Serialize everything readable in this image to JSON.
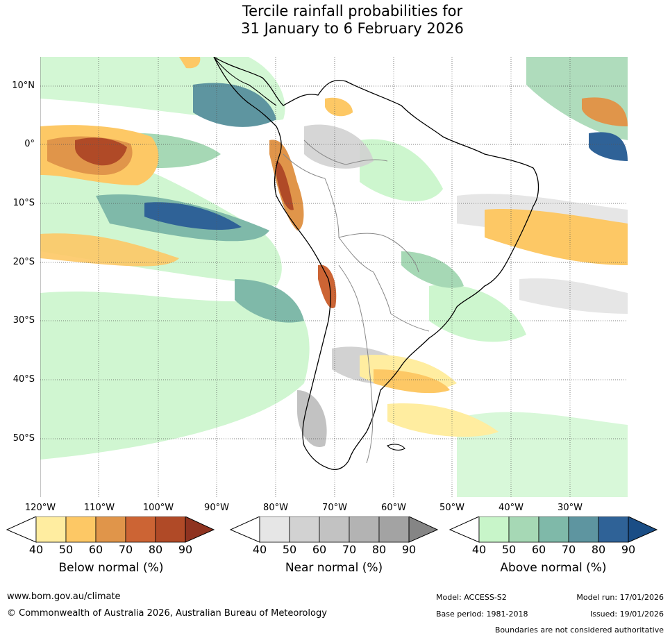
{
  "title_line1": "Tercile rainfall probabilities for",
  "title_line2": "31 January to 6 February 2026",
  "map": {
    "lat_labels": [
      "10°N",
      "0°",
      "10°S",
      "20°S",
      "30°S",
      "40°S",
      "50°S"
    ],
    "lon_labels": [
      "120°W",
      "110°W",
      "100°W",
      "90°W",
      "80°W",
      "70°W",
      "60°W",
      "50°W",
      "40°W",
      "30°W"
    ]
  },
  "legends": {
    "below": {
      "title": "Below normal (%)",
      "ticks": [
        "40",
        "50",
        "60",
        "70",
        "80",
        "90"
      ],
      "colors": [
        "#ffeda0",
        "#fdc865",
        "#e0954a",
        "#cc6434",
        "#b04a27",
        "#8f3320"
      ]
    },
    "near": {
      "title": "Near normal (%)",
      "ticks": [
        "40",
        "50",
        "60",
        "70",
        "80",
        "90"
      ],
      "colors": [
        "#e6e6e6",
        "#d2d2d2",
        "#c2c2c2",
        "#b3b3b3",
        "#a3a3a3",
        "#858585"
      ]
    },
    "above": {
      "title": "Above normal (%)",
      "ticks": [
        "40",
        "50",
        "60",
        "70",
        "80",
        "90"
      ],
      "colors": [
        "#c8f5c9",
        "#a6d8b5",
        "#7fb9a9",
        "#5e95a0",
        "#2f6297",
        "#1a4d85"
      ]
    }
  },
  "footer": {
    "url": "www.bom.gov.au/climate",
    "copyright": "© Commonwealth of Australia 2026, Australian Bureau of Meteorology",
    "model": "Model: ACCESS-S2",
    "model_run": "Model run: 17/01/2026",
    "base_period": "Base period: 1981-2018",
    "issued": "Issued: 19/01/2026",
    "disclaimer": "Boundaries are not considered authoritative"
  }
}
